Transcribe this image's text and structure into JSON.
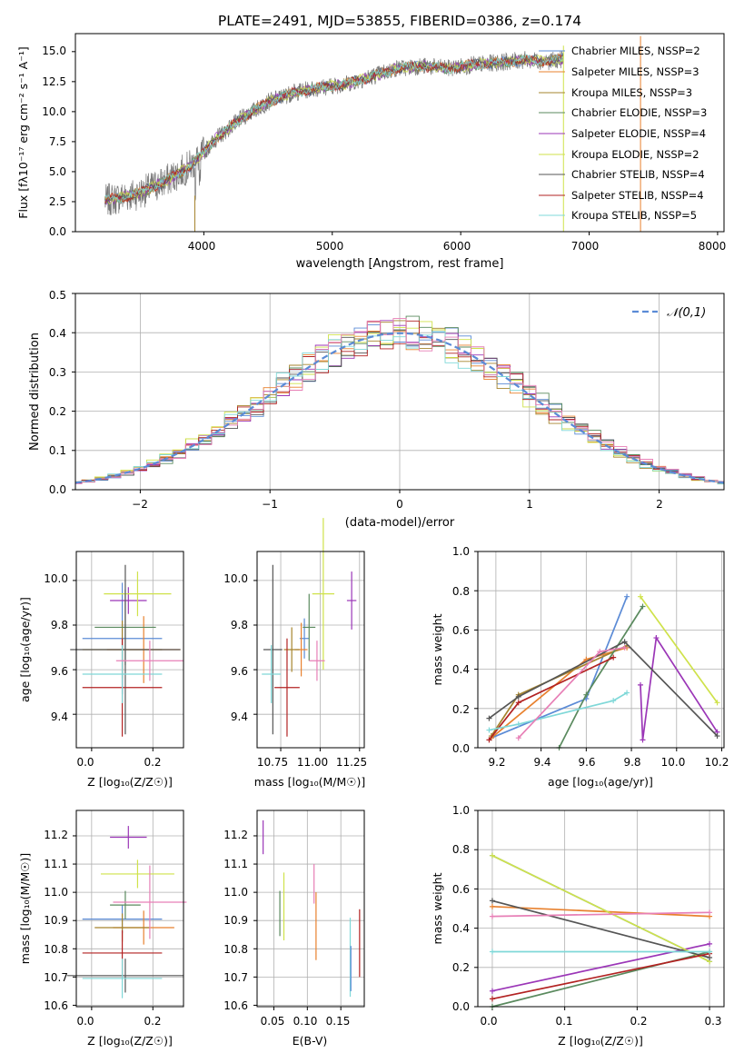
{
  "colors": {
    "chabrier_miles": "#5b8bd6",
    "salpeter_miles": "#e8812e",
    "kroupa_miles": "#a6842e",
    "chabrier_elodie": "#5a8a5e",
    "salpeter_elodie": "#9b36b7",
    "kroupa_elodie": "#cfe24a",
    "chabrier_stelib": "#555555",
    "salpeter_stelib": "#b22222",
    "kroupa_stelib": "#7fd8d8",
    "pink": "#e77fb6"
  },
  "spectrum": {
    "title": "PLATE=2491, MJD=53855, FIBERID=0386, z=0.174",
    "xlabel": "wavelength [Angstrom, rest frame]",
    "ylabel": "Flux [fλ10⁻¹⁷ erg cm⁻² s⁻¹ A⁻¹]",
    "xticks": [
      "4000",
      "5000",
      "6000",
      "7000",
      "8000"
    ],
    "yticks": [
      "0.0",
      "2.5",
      "5.0",
      "7.5",
      "10.0",
      "12.5",
      "15.0"
    ],
    "legend": [
      "Chabrier MILES, NSSP=2",
      "Salpeter MILES, NSSP=3",
      "Kroupa MILES, NSSP=3",
      "Chabrier ELODIE, NSSP=3",
      "Salpeter ELODIE, NSSP=4",
      "Kroupa ELODIE, NSSP=2",
      "Chabrier STELIB, NSSP=4",
      "Salpeter STELIB, NSSP=4",
      "Kroupa STELIB, NSSP=5"
    ]
  },
  "residuals": {
    "xlabel": "(data-model)/error",
    "ylabel": "Normed distribution",
    "xticks": [
      "−2",
      "−1",
      "0",
      "1",
      "2"
    ],
    "yticks": [
      "0.0",
      "0.1",
      "0.2",
      "0.3",
      "0.4",
      "0.5"
    ],
    "legend": "𝒩(0,1)"
  },
  "panels": {
    "age_z": {
      "xlabel": "Z [log₁₀(Z/Z☉)]",
      "ylabel": "age  [log₁₀(age/yr)]",
      "xticks": [
        "0.0",
        "0.2"
      ],
      "yticks": [
        "9.4",
        "9.6",
        "9.8",
        "10.0"
      ]
    },
    "age_mass": {
      "xlabel": "mass [log₁₀(M/M☉)]",
      "xticks": [
        "10.75",
        "11.00",
        "11.25"
      ],
      "yticks": [
        "9.4",
        "9.6",
        "9.8",
        "10.0"
      ]
    },
    "mw_age": {
      "xlabel": "age  [log₁₀(age/yr)]",
      "ylabel": "mass weight",
      "xticks": [
        "9.2",
        "9.4",
        "9.6",
        "9.8",
        "10.0",
        "10.2"
      ],
      "yticks": [
        "0.0",
        "0.2",
        "0.4",
        "0.6",
        "0.8",
        "1.0"
      ]
    },
    "mass_z": {
      "xlabel": "Z [log₁₀(Z/Z☉)]",
      "ylabel": "mass [log₁₀(M/M☉)]",
      "xticks": [
        "0.0",
        "0.2"
      ],
      "yticks": [
        "10.6",
        "10.7",
        "10.8",
        "10.9",
        "11.0",
        "11.1",
        "11.2"
      ]
    },
    "mass_ebv": {
      "xlabel": "E(B-V)",
      "xticks": [
        "0.05",
        "0.10",
        "0.15"
      ],
      "yticks": [
        "10.6",
        "10.7",
        "10.8",
        "10.9",
        "11.0",
        "11.1",
        "11.2"
      ]
    },
    "mw_z": {
      "xlabel": "Z [log₁₀(Z/Z☉)]",
      "ylabel": "mass weight",
      "xticks": [
        "0.0",
        "0.1",
        "0.2",
        "0.3"
      ],
      "yticks": [
        "0.0",
        "0.2",
        "0.4",
        "0.6",
        "0.8",
        "1.0"
      ]
    }
  },
  "chart_data": [
    {
      "type": "line",
      "title": "PLATE=2491, MJD=53855, FIBERID=0386, z=0.174",
      "xlabel": "wavelength [Angstrom, rest frame]",
      "ylabel": "Flux [fλ10⁻¹⁷ erg cm⁻² s⁻¹ A⁻¹]",
      "xlim": [
        3000,
        8050
      ],
      "ylim": [
        0,
        16.5
      ],
      "grid": false,
      "legend_position": "top-right",
      "continuum": {
        "x": [
          3200,
          3500,
          3700,
          3900,
          4100,
          4300,
          4500,
          4700,
          4900,
          5100,
          5300,
          5500,
          5700,
          5900,
          6100,
          6300,
          6500,
          6700,
          6800
        ],
        "y": [
          2.5,
          3.2,
          4.2,
          5.5,
          7.8,
          9.5,
          10.8,
          11.6,
          12.0,
          12.3,
          12.9,
          13.6,
          13.8,
          13.6,
          13.9,
          14.1,
          14.3,
          14.2,
          14.4
        ]
      },
      "series": [
        {
          "name": "Chabrier MILES, NSSP=2"
        },
        {
          "name": "Salpeter MILES, NSSP=3"
        },
        {
          "name": "Kroupa MILES, NSSP=3"
        },
        {
          "name": "Chabrier ELODIE, NSSP=3"
        },
        {
          "name": "Salpeter ELODIE, NSSP=4"
        },
        {
          "name": "Kroupa ELODIE, NSSP=2"
        },
        {
          "name": "Chabrier STELIB, NSSP=4"
        },
        {
          "name": "Salpeter STELIB, NSSP=4"
        },
        {
          "name": "Kroupa STELIB, NSSP=5"
        }
      ]
    },
    {
      "type": "line",
      "xlabel": "(data-model)/error",
      "ylabel": "Normed distribution",
      "xlim": [
        -2.5,
        2.5
      ],
      "ylim": [
        0,
        0.5
      ],
      "grid": true,
      "legend_position": "top-right",
      "series": [
        {
          "name": "𝒩(0,1)",
          "function": "normal_pdf",
          "mean": 0,
          "sigma": 1
        }
      ],
      "histogram_bin_width": 0.1
    },
    {
      "type": "scatter",
      "xlabel": "Z [log₁₀(Z/Z☉)]",
      "ylabel": "age  [log₁₀(age/yr)]",
      "xlim": [
        -0.05,
        0.3
      ],
      "ylim": [
        9.25,
        10.13
      ],
      "grid": true,
      "points": [
        {
          "color": "chabrier_miles",
          "x": 0.1,
          "y": 9.74,
          "xerr": 0.13,
          "yerr": 0.25
        },
        {
          "color": "salpeter_miles",
          "x": 0.17,
          "y": 9.69,
          "xerr": 0.12,
          "yerr": 0.15
        },
        {
          "color": "kroupa_miles",
          "x": 0.1,
          "y": 9.69,
          "xerr": 0.13,
          "yerr": 0.13
        },
        {
          "color": "chabrier_elodie",
          "x": 0.11,
          "y": 9.79,
          "xerr": 0.1,
          "yerr": 0.17
        },
        {
          "color": "salpeter_elodie",
          "x": 0.12,
          "y": 9.91,
          "xerr": 0.06,
          "yerr": 0.06
        },
        {
          "color": "kroupa_elodie",
          "x": 0.15,
          "y": 9.94,
          "xerr": 0.11,
          "yerr": 0.1
        },
        {
          "color": "chabrier_stelib",
          "x": 0.11,
          "y": 9.69,
          "xerr": 0.18,
          "yerr": 0.38
        },
        {
          "color": "salpeter_stelib",
          "x": 0.1,
          "y": 9.52,
          "xerr": 0.13,
          "yerr": 0.22
        },
        {
          "color": "kroupa_stelib",
          "x": 0.1,
          "y": 9.58,
          "xerr": 0.13,
          "yerr": 0.13
        },
        {
          "color": "pink",
          "x": 0.19,
          "y": 9.64,
          "xerr": 0.11,
          "yerr": 0.09
        }
      ]
    },
    {
      "type": "scatter",
      "xlabel": "mass [log₁₀(M/M☉)]",
      "xlim": [
        10.6,
        11.28
      ],
      "ylim": [
        9.25,
        10.13
      ],
      "grid": true,
      "points": [
        {
          "color": "chabrier_miles",
          "x": 10.9,
          "y": 9.74,
          "xerr": 0.03,
          "yerr": 0.09
        },
        {
          "color": "salpeter_miles",
          "x": 10.88,
          "y": 9.69,
          "xerr": 0.04,
          "yerr": 0.12
        },
        {
          "color": "kroupa_miles",
          "x": 10.82,
          "y": 9.69,
          "xerr": 0.05,
          "yerr": 0.1
        },
        {
          "color": "chabrier_elodie",
          "x": 10.93,
          "y": 9.79,
          "xerr": 0.04,
          "yerr": 0.15
        },
        {
          "color": "salpeter_elodie",
          "x": 11.2,
          "y": 9.91,
          "xerr": 0.03,
          "yerr": 0.13
        },
        {
          "color": "kroupa_elodie",
          "x": 11.02,
          "y": 9.94,
          "xerr": 0.07,
          "yerr": 0.34
        },
        {
          "color": "chabrier_stelib",
          "x": 10.7,
          "y": 9.69,
          "xerr": 0.06,
          "yerr": 0.38
        },
        {
          "color": "salpeter_stelib",
          "x": 10.79,
          "y": 9.52,
          "xerr": 0.08,
          "yerr": 0.22
        },
        {
          "color": "kroupa_stelib",
          "x": 10.69,
          "y": 9.58,
          "xerr": 0.06,
          "yerr": 0.13
        },
        {
          "color": "pink",
          "x": 10.98,
          "y": 9.64,
          "xerr": 0.05,
          "yerr": 0.09
        }
      ]
    },
    {
      "type": "line",
      "xlabel": "age  [log₁₀(age/yr)]",
      "ylabel": "mass weight",
      "xlim": [
        9.12,
        10.21
      ],
      "ylim": [
        0,
        1
      ],
      "grid": true,
      "series": [
        {
          "color": "chabrier_miles",
          "x": [
            9.18,
            9.6,
            9.78
          ],
          "y": [
            0.05,
            0.25,
            0.77
          ]
        },
        {
          "color": "salpeter_miles",
          "x": [
            9.18,
            9.6,
            9.78
          ],
          "y": [
            0.05,
            0.45,
            0.51
          ]
        },
        {
          "color": "kroupa_miles",
          "x": [
            9.18,
            9.3,
            9.78
          ],
          "y": [
            0.06,
            0.27,
            0.52
          ]
        },
        {
          "color": "chabrier_elodie",
          "x": [
            9.48,
            9.6,
            9.85
          ],
          "y": [
            0.0,
            0.27,
            0.72
          ]
        },
        {
          "color": "salpeter_elodie",
          "x": [
            9.84,
            9.85,
            9.91,
            10.18
          ],
          "y": [
            0.32,
            0.04,
            0.56,
            0.08
          ]
        },
        {
          "color": "kroupa_elodie",
          "x": [
            9.84,
            10.18
          ],
          "y": [
            0.77,
            0.23
          ]
        },
        {
          "color": "chabrier_stelib",
          "x": [
            9.17,
            9.3,
            9.77,
            10.18
          ],
          "y": [
            0.15,
            0.26,
            0.54,
            0.06
          ]
        },
        {
          "color": "salpeter_stelib",
          "x": [
            9.17,
            9.3,
            9.72
          ],
          "y": [
            0.04,
            0.23,
            0.46
          ]
        },
        {
          "color": "kroupa_stelib",
          "x": [
            9.17,
            9.3,
            9.72,
            9.78
          ],
          "y": [
            0.09,
            0.12,
            0.24,
            0.28
          ]
        },
        {
          "color": "pink",
          "x": [
            9.3,
            9.66,
            9.77
          ],
          "y": [
            0.05,
            0.49,
            0.51
          ]
        }
      ]
    },
    {
      "type": "scatter",
      "xlabel": "Z [log₁₀(Z/Z☉)]",
      "ylabel": "mass [log₁₀(M/M☉)]",
      "xlim": [
        -0.05,
        0.3
      ],
      "ylim": [
        10.595,
        11.29
      ],
      "grid": true,
      "points": [
        {
          "color": "chabrier_miles",
          "x": 0.1,
          "y": 10.905,
          "xerr": 0.13,
          "yerr": 0.05
        },
        {
          "color": "salpeter_miles",
          "x": 0.17,
          "y": 10.875,
          "xerr": 0.1,
          "yerr": 0.06
        },
        {
          "color": "kroupa_miles",
          "x": 0.1,
          "y": 10.875,
          "xerr": 0.09,
          "yerr": 0.05
        },
        {
          "color": "chabrier_elodie",
          "x": 0.11,
          "y": 10.955,
          "xerr": 0.05,
          "yerr": 0.05
        },
        {
          "color": "salpeter_elodie",
          "x": 0.12,
          "y": 11.195,
          "xerr": 0.06,
          "yerr": 0.04
        },
        {
          "color": "kroupa_elodie",
          "x": 0.15,
          "y": 11.065,
          "xerr": 0.12,
          "yerr": 0.05
        },
        {
          "color": "chabrier_stelib",
          "x": 0.11,
          "y": 10.705,
          "xerr": 0.19,
          "yerr": 0.06
        },
        {
          "color": "salpeter_stelib",
          "x": 0.1,
          "y": 10.785,
          "xerr": 0.13,
          "yerr": 0.08
        },
        {
          "color": "kroupa_stelib",
          "x": 0.1,
          "y": 10.695,
          "xerr": 0.13,
          "yerr": 0.07
        },
        {
          "color": "pink",
          "x": 0.19,
          "y": 10.965,
          "xerr": 0.12,
          "yerr": 0.13
        }
      ]
    },
    {
      "type": "scatter",
      "xlabel": "E(B-V)",
      "xlim": [
        0.025,
        0.185
      ],
      "ylim": [
        10.595,
        11.29
      ],
      "grid": true,
      "points": [
        {
          "color": "salpeter_elodie",
          "x": 0.034,
          "y": 11.195,
          "yerr": 0.06
        },
        {
          "color": "chabrier_elodie",
          "x": 0.059,
          "y": 10.925,
          "yerr": 0.08
        },
        {
          "color": "kroupa_elodie",
          "x": 0.065,
          "y": 10.95,
          "yerr": 0.12
        },
        {
          "color": "pink",
          "x": 0.11,
          "y": 11.03,
          "yerr": 0.07
        },
        {
          "color": "salpeter_miles",
          "x": 0.113,
          "y": 10.88,
          "yerr": 0.12
        },
        {
          "color": "kroupa_stelib",
          "x": 0.164,
          "y": 10.77,
          "yerr": 0.14
        },
        {
          "color": "chabrier_miles",
          "x": 0.165,
          "y": 10.73,
          "yerr": 0.08
        },
        {
          "color": "salpeter_stelib",
          "x": 0.178,
          "y": 10.82,
          "yerr": 0.12
        }
      ]
    },
    {
      "type": "line",
      "xlabel": "Z [log₁₀(Z/Z☉)]",
      "ylabel": "mass weight",
      "xlim": [
        -0.02,
        0.32
      ],
      "ylim": [
        0,
        1
      ],
      "grid": true,
      "series": [
        {
          "color": "chabrier_miles",
          "x": [
            0.0,
            0.3
          ],
          "y": [
            0.77,
            0.23
          ]
        },
        {
          "color": "salpeter_miles",
          "x": [
            0.0,
            0.3
          ],
          "y": [
            0.51,
            0.46
          ]
        },
        {
          "color": "chabrier_elodie",
          "x": [
            0.0,
            0.3
          ],
          "y": [
            0.0,
            0.28
          ]
        },
        {
          "color": "salpeter_elodie",
          "x": [
            0.0,
            0.3
          ],
          "y": [
            0.08,
            0.32
          ]
        },
        {
          "color": "kroupa_elodie",
          "x": [
            0.0,
            0.3
          ],
          "y": [
            0.77,
            0.23
          ]
        },
        {
          "color": "chabrier_stelib",
          "x": [
            0.0,
            0.3
          ],
          "y": [
            0.54,
            0.25
          ]
        },
        {
          "color": "salpeter_stelib",
          "x": [
            0.0,
            0.3
          ],
          "y": [
            0.04,
            0.27
          ]
        },
        {
          "color": "kroupa_stelib",
          "x": [
            0.0,
            0.3
          ],
          "y": [
            0.28,
            0.28
          ]
        },
        {
          "color": "pink",
          "x": [
            0.0,
            0.3
          ],
          "y": [
            0.46,
            0.48
          ]
        }
      ]
    }
  ]
}
